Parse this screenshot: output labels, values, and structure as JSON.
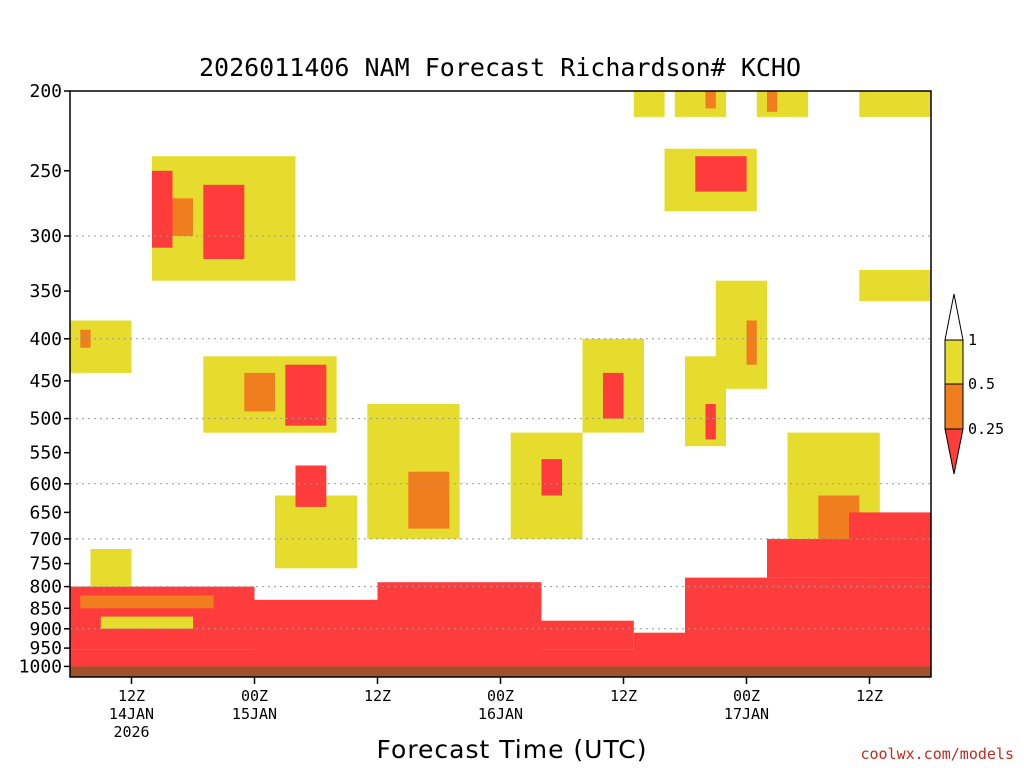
{
  "chart_data": {
    "type": "heatmap",
    "title": "2026011406 NAM Forecast Richardson# KCHO",
    "xlabel": "Forecast Time (UTC)",
    "credit": "coolwx.com/models",
    "y_axis": {
      "label": "",
      "scale": "log",
      "range_hPa": [
        1030,
        200
      ],
      "ticks": [
        200,
        250,
        300,
        350,
        400,
        450,
        500,
        550,
        600,
        650,
        700,
        750,
        800,
        850,
        900,
        950,
        1000
      ],
      "grid_dotted_levels": [
        300,
        400,
        500,
        600,
        700,
        800,
        900
      ]
    },
    "x_axis": {
      "range_forecast_hours": [
        0,
        84
      ],
      "ticks": [
        {
          "hour": 6,
          "lines": [
            "12Z",
            "14JAN",
            "2026"
          ]
        },
        {
          "hour": 18,
          "lines": [
            "00Z",
            "15JAN"
          ]
        },
        {
          "hour": 30,
          "lines": [
            "12Z"
          ]
        },
        {
          "hour": 42,
          "lines": [
            "00Z",
            "16JAN"
          ]
        },
        {
          "hour": 54,
          "lines": [
            "12Z"
          ]
        },
        {
          "hour": 66,
          "lines": [
            "00Z",
            "17JAN"
          ]
        },
        {
          "hour": 78,
          "lines": [
            "12Z"
          ]
        }
      ]
    },
    "colorbar": {
      "bins": [
        {
          "range": "<0.25",
          "color": "#ff3c3c"
        },
        {
          "range": "0.25-0.5",
          "color": "#f07d1e"
        },
        {
          "range": "0.5-1",
          "color": "#e6dc2d"
        },
        {
          "range": ">1",
          "color": "#ffffff"
        }
      ],
      "tick_labels": [
        "1",
        "0.5",
        "0.25"
      ]
    },
    "ground_color": "#a0522d",
    "regions": [
      {
        "t0": 0,
        "t1": 84,
        "p0": 1000,
        "p1": 1030,
        "bin": "ground"
      },
      {
        "t0": 0,
        "t1": 84,
        "p0": 955,
        "p1": 1000,
        "bin": "<0.25"
      },
      {
        "t0": 0,
        "t1": 18,
        "p0": 800,
        "p1": 955,
        "bin": "<0.25"
      },
      {
        "t0": 1,
        "t1": 14,
        "p0": 820,
        "p1": 850,
        "bin": "0.25-0.5"
      },
      {
        "t0": 3,
        "t1": 12,
        "p0": 870,
        "p1": 900,
        "bin": "0.5-1"
      },
      {
        "t0": 18,
        "t1": 30,
        "p0": 830,
        "p1": 955,
        "bin": "<0.25"
      },
      {
        "t0": 30,
        "t1": 46,
        "p0": 790,
        "p1": 955,
        "bin": "<0.25"
      },
      {
        "t0": 46,
        "t1": 55,
        "p0": 880,
        "p1": 955,
        "bin": "<0.25"
      },
      {
        "t0": 55,
        "t1": 60,
        "p0": 910,
        "p1": 955,
        "bin": "<0.25"
      },
      {
        "t0": 60,
        "t1": 84,
        "p0": 780,
        "p1": 955,
        "bin": "<0.25"
      },
      {
        "t0": 68,
        "t1": 84,
        "p0": 700,
        "p1": 780,
        "bin": "<0.25"
      },
      {
        "t0": 2,
        "t1": 6,
        "p0": 720,
        "p1": 800,
        "bin": "0.5-1"
      },
      {
        "t0": 20,
        "t1": 28,
        "p0": 620,
        "p1": 760,
        "bin": "0.5-1"
      },
      {
        "t0": 22,
        "t1": 25,
        "p0": 570,
        "p1": 640,
        "bin": "<0.25"
      },
      {
        "t0": 29,
        "t1": 38,
        "p0": 480,
        "p1": 700,
        "bin": "0.5-1"
      },
      {
        "t0": 33,
        "t1": 37,
        "p0": 580,
        "p1": 680,
        "bin": "0.25-0.5"
      },
      {
        "t0": 43,
        "t1": 50,
        "p0": 520,
        "p1": 700,
        "bin": "0.5-1"
      },
      {
        "t0": 46,
        "t1": 48,
        "p0": 560,
        "p1": 620,
        "bin": "<0.25"
      },
      {
        "t0": 13,
        "t1": 26,
        "p0": 420,
        "p1": 520,
        "bin": "0.5-1"
      },
      {
        "t0": 17,
        "t1": 20,
        "p0": 440,
        "p1": 490,
        "bin": "0.25-0.5"
      },
      {
        "t0": 21,
        "t1": 25,
        "p0": 430,
        "p1": 510,
        "bin": "<0.25"
      },
      {
        "t0": 8,
        "t1": 22,
        "p0": 240,
        "p1": 340,
        "bin": "0.5-1"
      },
      {
        "t0": 8,
        "t1": 10,
        "p0": 250,
        "p1": 310,
        "bin": "<0.25"
      },
      {
        "t0": 13,
        "t1": 17,
        "p0": 260,
        "p1": 320,
        "bin": "<0.25"
      },
      {
        "t0": 10,
        "t1": 12,
        "p0": 270,
        "p1": 300,
        "bin": "0.25-0.5"
      },
      {
        "t0": 58,
        "t1": 67,
        "p0": 235,
        "p1": 280,
        "bin": "0.5-1"
      },
      {
        "t0": 61,
        "t1": 66,
        "p0": 240,
        "p1": 265,
        "bin": "<0.25"
      },
      {
        "t0": 63,
        "t1": 68,
        "p0": 340,
        "p1": 460,
        "bin": "0.5-1"
      },
      {
        "t0": 66,
        "t1": 67,
        "p0": 380,
        "p1": 430,
        "bin": "0.25-0.5"
      },
      {
        "t0": 70,
        "t1": 79,
        "p0": 520,
        "p1": 700,
        "bin": "0.5-1"
      },
      {
        "t0": 73,
        "t1": 77,
        "p0": 620,
        "p1": 700,
        "bin": "0.25-0.5"
      },
      {
        "t0": 76,
        "t1": 84,
        "p0": 650,
        "p1": 720,
        "bin": "<0.25"
      },
      {
        "t0": 77,
        "t1": 84,
        "p0": 200,
        "p1": 215,
        "bin": "0.5-1"
      },
      {
        "t0": 77,
        "t1": 84,
        "p0": 330,
        "p1": 360,
        "bin": "0.5-1"
      },
      {
        "t0": 0,
        "t1": 6,
        "p0": 380,
        "p1": 440,
        "bin": "0.5-1"
      },
      {
        "t0": 1,
        "t1": 2,
        "p0": 390,
        "p1": 410,
        "bin": "0.25-0.5"
      },
      {
        "t0": 50,
        "t1": 56,
        "p0": 400,
        "p1": 520,
        "bin": "0.5-1"
      },
      {
        "t0": 52,
        "t1": 54,
        "p0": 440,
        "p1": 500,
        "bin": "<0.25"
      },
      {
        "t0": 60,
        "t1": 64,
        "p0": 420,
        "p1": 540,
        "bin": "0.5-1"
      },
      {
        "t0": 62,
        "t1": 63,
        "p0": 480,
        "p1": 530,
        "bin": "<0.25"
      },
      {
        "t0": 55,
        "t1": 58,
        "p0": 200,
        "p1": 215,
        "bin": "0.5-1"
      },
      {
        "t0": 59,
        "t1": 64,
        "p0": 200,
        "p1": 215,
        "bin": "0.5-1"
      },
      {
        "t0": 62,
        "t1": 63,
        "p0": 200,
        "p1": 210,
        "bin": "0.25-0.5"
      },
      {
        "t0": 67,
        "t1": 72,
        "p0": 200,
        "p1": 215,
        "bin": "0.5-1"
      },
      {
        "t0": 68,
        "t1": 69,
        "p0": 200,
        "p1": 212,
        "bin": "0.25-0.5"
      }
    ]
  }
}
